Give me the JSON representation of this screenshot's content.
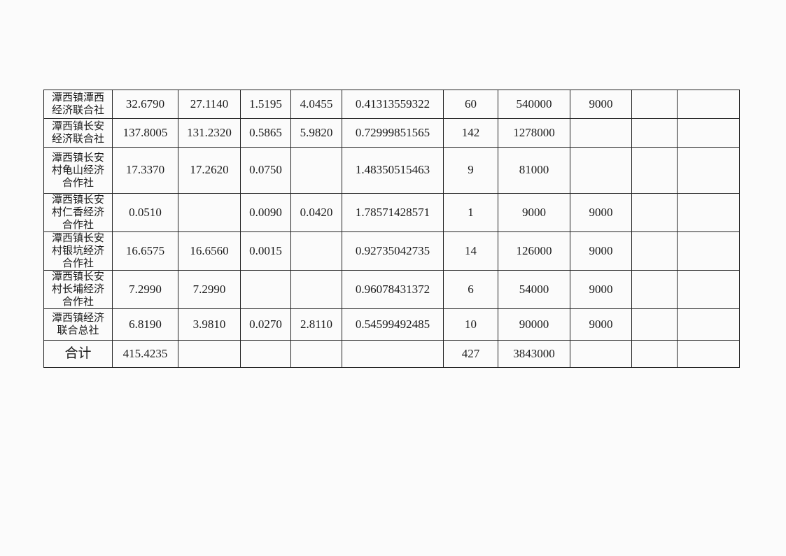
{
  "table": {
    "rows": [
      {
        "name": "潭西镇潭西经济联合社",
        "cells": [
          "32.6790",
          "27.1140",
          "1.5195",
          "4.0455",
          "0.41313559322",
          "60",
          "540000",
          "9000",
          "",
          ""
        ]
      },
      {
        "name": "潭西镇长安经济联合社",
        "cells": [
          "137.8005",
          "131.2320",
          "0.5865",
          "5.9820",
          "0.72999851565",
          "142",
          "1278000",
          "",
          "",
          ""
        ]
      },
      {
        "name": "潭西镇长安村龟山经济合作社",
        "cells": [
          "17.3370",
          "17.2620",
          "0.0750",
          "",
          "1.48350515463",
          "9",
          "81000",
          "",
          "",
          ""
        ]
      },
      {
        "name": "潭西镇长安村仁香经济合作社",
        "cells": [
          "0.0510",
          "",
          "0.0090",
          "0.0420",
          "1.78571428571",
          "1",
          "9000",
          "9000",
          "",
          ""
        ]
      },
      {
        "name": "潭西镇长安村银坑经济合作社",
        "cells": [
          "16.6575",
          "16.6560",
          "0.0015",
          "",
          "0.92735042735",
          "14",
          "126000",
          "9000",
          "",
          ""
        ]
      },
      {
        "name": "潭西镇长安村长埔经济合作社",
        "cells": [
          "7.2990",
          "7.2990",
          "",
          "",
          "0.96078431372",
          "6",
          "54000",
          "9000",
          "",
          ""
        ]
      },
      {
        "name": "潭西镇经济联合总社",
        "cells": [
          "6.8190",
          "3.9810",
          "0.0270",
          "2.8110",
          "0.54599492485",
          "10",
          "90000",
          "9000",
          "",
          ""
        ]
      },
      {
        "name": "合计",
        "cells": [
          "415.4235",
          "",
          "",
          "",
          "",
          "427",
          "3843000",
          "",
          "",
          ""
        ]
      }
    ]
  }
}
